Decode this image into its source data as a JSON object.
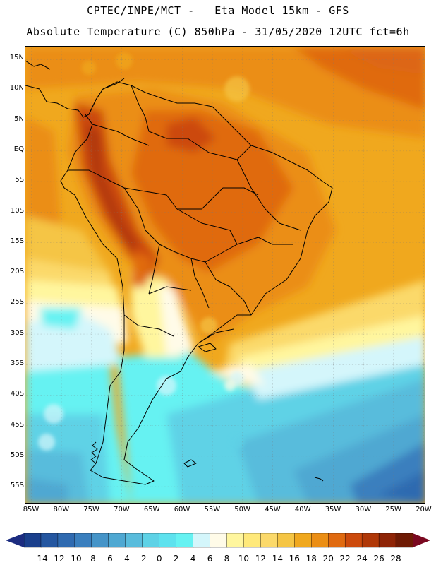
{
  "header": {
    "line1": "CPTEC/INPE/MCT -   Eta Model 15km - GFS",
    "line2": "Absolute Temperature (C) 850hPa - 31/05/2020 12UTC fct=6h"
  },
  "axes": {
    "lat_labels": [
      "15N",
      "10N",
      "5N",
      "EQ",
      "5S",
      "10S",
      "15S",
      "20S",
      "25S",
      "30S",
      "35S",
      "40S",
      "45S",
      "50S",
      "55S"
    ],
    "lon_labels": [
      "85W",
      "80W",
      "75W",
      "70W",
      "65W",
      "60W",
      "55W",
      "50W",
      "45W",
      "40W",
      "35W",
      "30W",
      "25W",
      "20W"
    ]
  },
  "colorbar": {
    "labels": [
      "-14",
      "-12",
      "-10",
      "-8",
      "-6",
      "-4",
      "-2",
      "0",
      "2",
      "4",
      "6",
      "8",
      "10",
      "12",
      "14",
      "16",
      "18",
      "20",
      "22",
      "24",
      "26",
      "28"
    ],
    "colors": [
      "#1a3f8c",
      "#2456a0",
      "#2f6ab0",
      "#3a7fbe",
      "#4594c8",
      "#4fa8d2",
      "#59bcdc",
      "#5ed2e6",
      "#5ee2ee",
      "#66f2f2",
      "#d4f6fb",
      "#fffbe8",
      "#fff69e",
      "#ffe97a",
      "#fbd96a",
      "#f5c544",
      "#f0a81e",
      "#eb8e14",
      "#e06a10",
      "#cc4a0c",
      "#b03808",
      "#8e2406",
      "#6e1a04"
    ],
    "arrow_left_color": "#1c2c80",
    "arrow_right_color": "#7a0820"
  }
}
